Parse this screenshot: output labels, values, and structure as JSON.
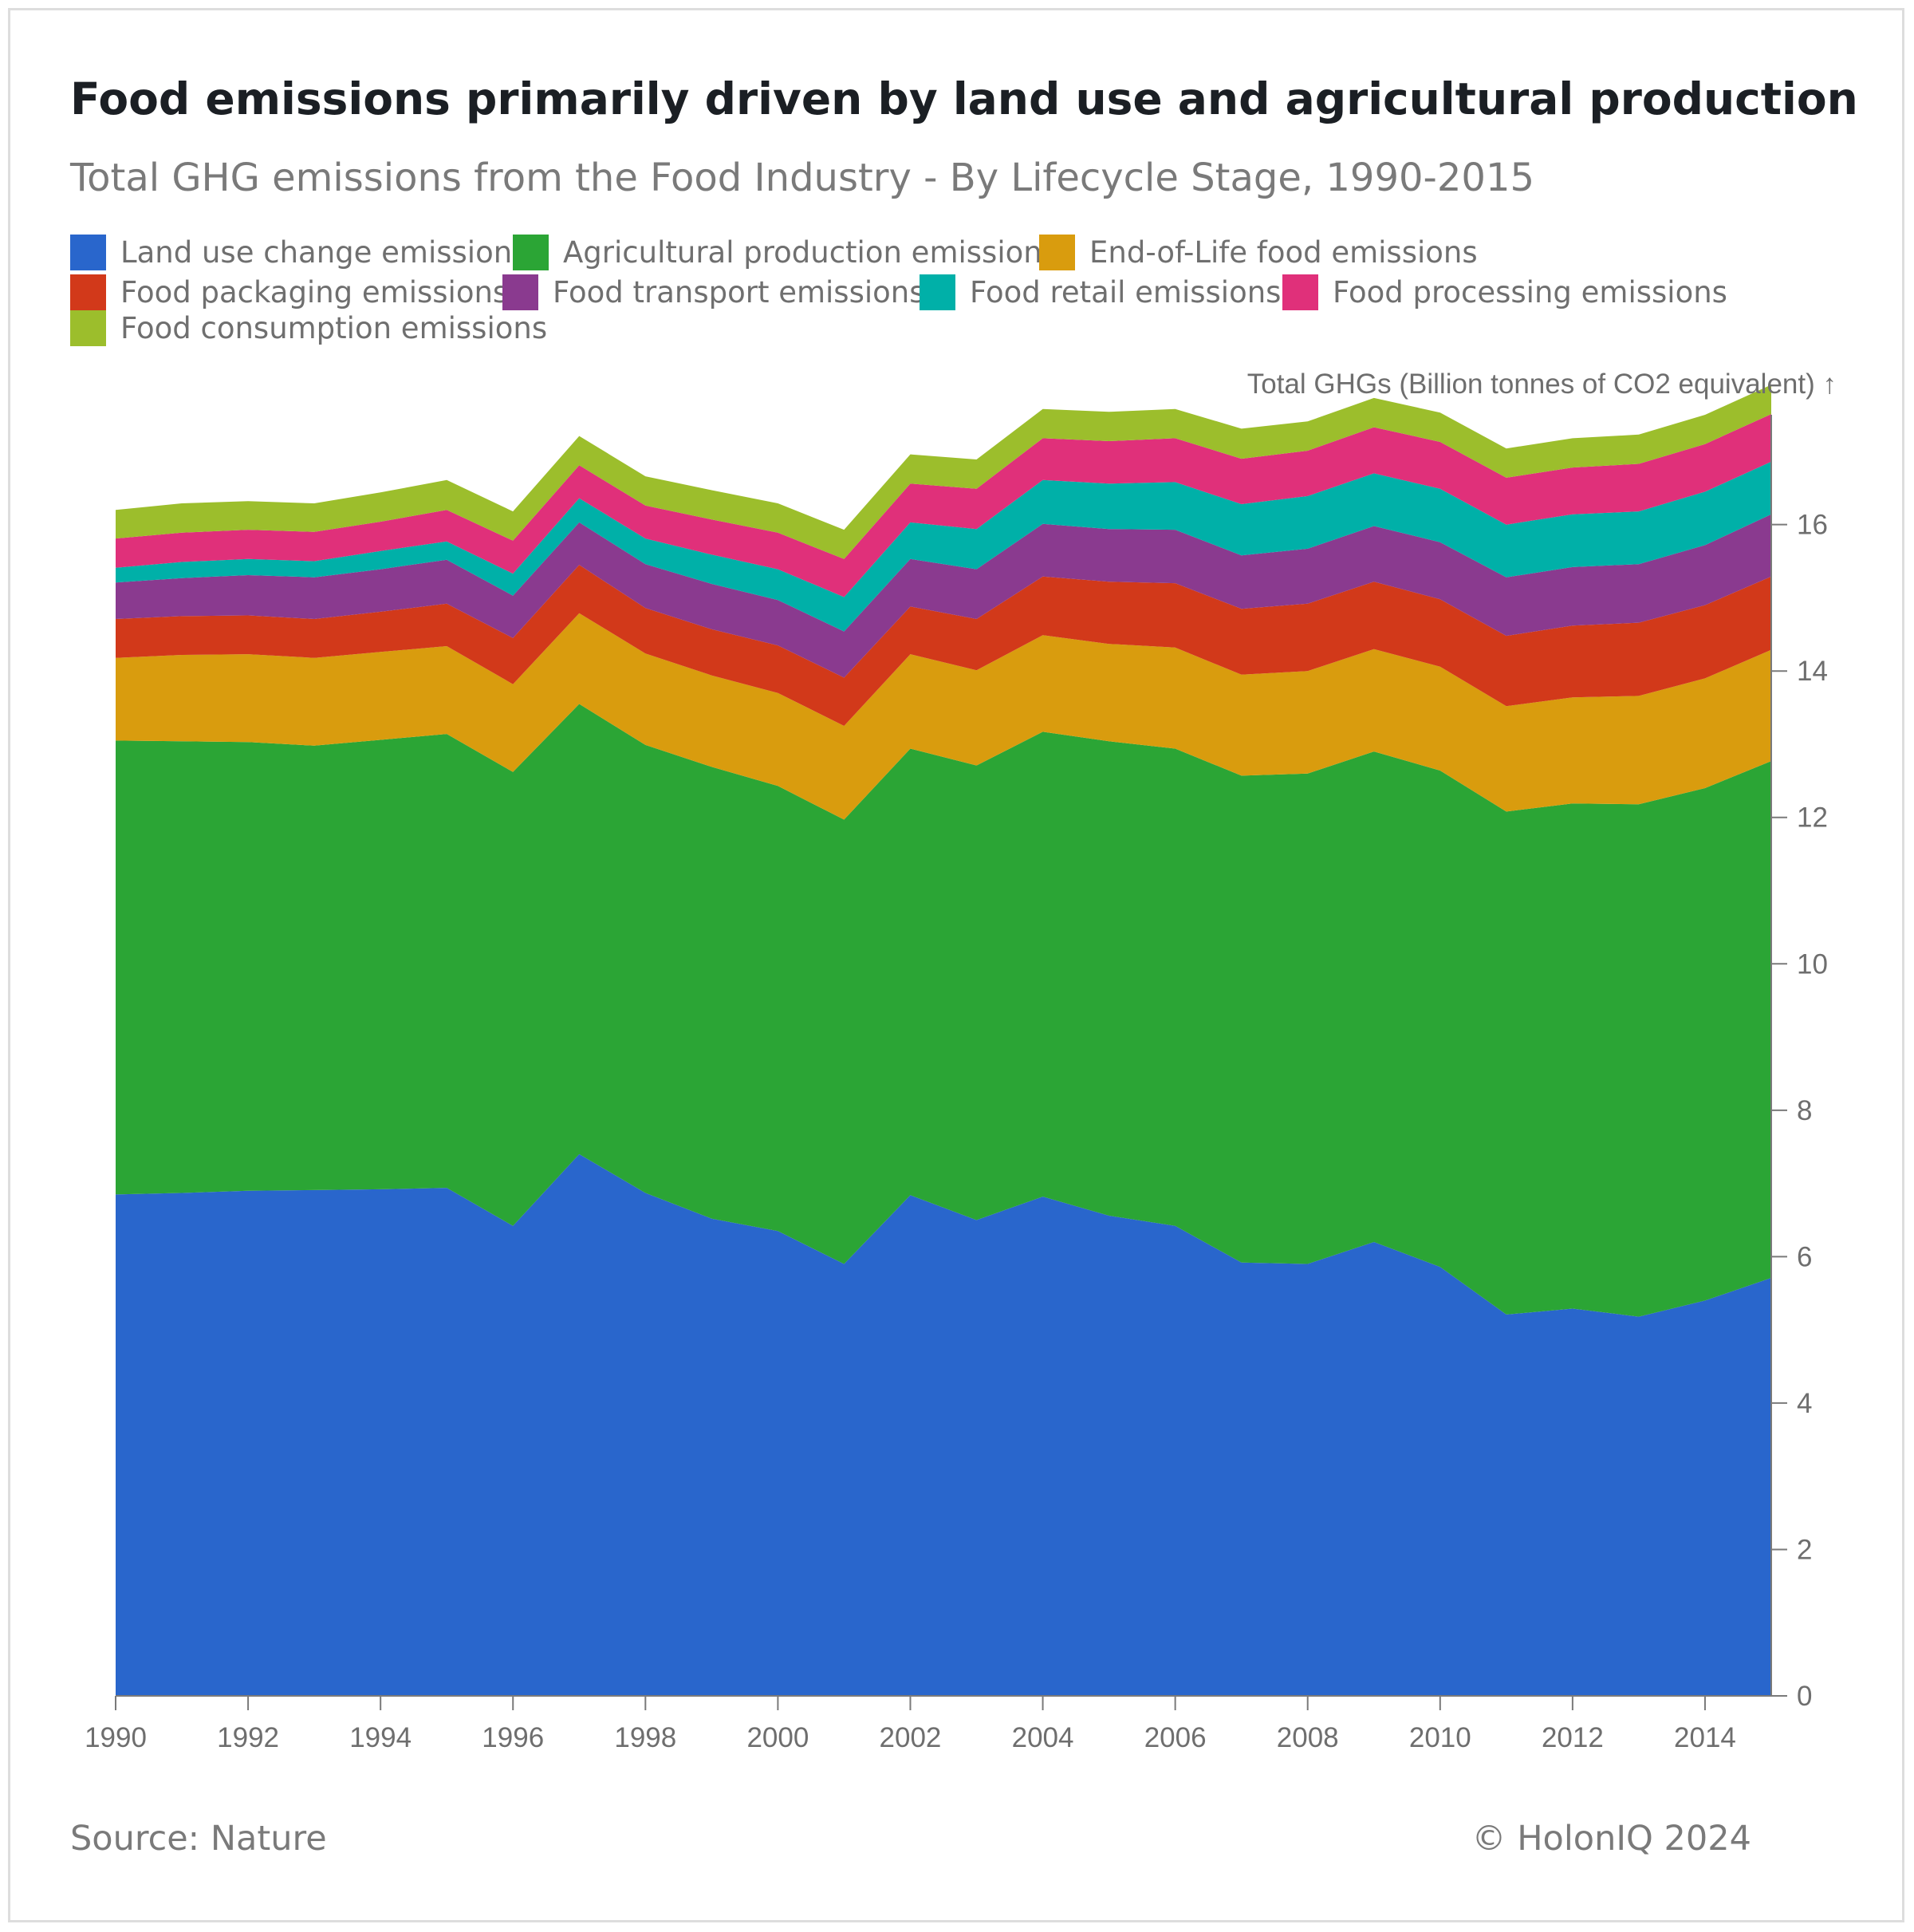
{
  "title": "Food emissions primarily driven by land use and agricultural production",
  "subtitle": "Total GHG emissions from the Food Industry - By Lifecycle Stage, 1990-2015",
  "source": "Source: Nature",
  "copyright": "© HolonIQ 2024",
  "chart_data": {
    "type": "area",
    "stacked": true,
    "ylabel": "Total GHGs (Billion tonnes of CO2 equivalent) ↑",
    "xlabel": "",
    "ylim": [
      0,
      17.5
    ],
    "xlim": [
      1990,
      2015
    ],
    "x_ticks": [
      "1990",
      "1992",
      "1994",
      "1996",
      "1998",
      "2000",
      "2002",
      "2004",
      "2006",
      "2008",
      "2010",
      "2012",
      "2014"
    ],
    "y_ticks": [
      "0",
      "2",
      "4",
      "6",
      "8",
      "10",
      "12",
      "14",
      "16"
    ],
    "legend_position": "top-left",
    "grid": false,
    "x": [
      1990,
      1991,
      1992,
      1993,
      1994,
      1995,
      1996,
      1997,
      1998,
      1999,
      2000,
      2001,
      2002,
      2003,
      2004,
      2005,
      2006,
      2007,
      2008,
      2009,
      2010,
      2011,
      2012,
      2013,
      2014,
      2015
    ],
    "series": [
      {
        "name": "Land use change emissions",
        "color": "#2966cc",
        "values": [
          6.85,
          6.87,
          6.9,
          6.91,
          6.92,
          6.94,
          6.42,
          7.4,
          6.87,
          6.52,
          6.35,
          5.9,
          6.84,
          6.5,
          6.82,
          6.56,
          6.42,
          5.92,
          5.9,
          6.2,
          5.86,
          5.21,
          5.29,
          5.18,
          5.4,
          5.71
        ]
      },
      {
        "name": "Agricultural production emissions",
        "color": "#2ba535",
        "values": [
          6.2,
          6.17,
          6.13,
          6.07,
          6.14,
          6.2,
          6.2,
          6.15,
          6.12,
          6.17,
          6.08,
          6.07,
          6.1,
          6.21,
          6.35,
          6.48,
          6.52,
          6.65,
          6.7,
          6.7,
          6.78,
          6.87,
          6.9,
          7.0,
          7.0,
          7.06
        ]
      },
      {
        "name": "End-of-Life food emissions",
        "color": "#d99c0e",
        "values": [
          1.13,
          1.18,
          1.2,
          1.2,
          1.2,
          1.2,
          1.2,
          1.24,
          1.25,
          1.25,
          1.27,
          1.28,
          1.29,
          1.3,
          1.32,
          1.33,
          1.38,
          1.38,
          1.4,
          1.4,
          1.42,
          1.44,
          1.45,
          1.48,
          1.5,
          1.52
        ]
      },
      {
        "name": "Food packaging emissions",
        "color": "#d2391a",
        "values": [
          0.53,
          0.53,
          0.53,
          0.53,
          0.55,
          0.58,
          0.63,
          0.66,
          0.62,
          0.63,
          0.65,
          0.66,
          0.65,
          0.7,
          0.8,
          0.85,
          0.88,
          0.9,
          0.92,
          0.92,
          0.92,
          0.96,
          0.98,
          1.0,
          1.0,
          1.0
        ]
      },
      {
        "name": "Food transport emissions",
        "color": "#8a3a8f",
        "values": [
          0.5,
          0.52,
          0.55,
          0.57,
          0.58,
          0.6,
          0.58,
          0.58,
          0.6,
          0.62,
          0.62,
          0.63,
          0.65,
          0.68,
          0.72,
          0.72,
          0.73,
          0.73,
          0.75,
          0.76,
          0.78,
          0.8,
          0.8,
          0.8,
          0.82,
          0.85
        ]
      },
      {
        "name": "Food retail emissions",
        "color": "#00b0a8",
        "values": [
          0.2,
          0.22,
          0.22,
          0.22,
          0.25,
          0.25,
          0.3,
          0.33,
          0.35,
          0.4,
          0.42,
          0.47,
          0.5,
          0.55,
          0.6,
          0.62,
          0.65,
          0.7,
          0.72,
          0.72,
          0.73,
          0.72,
          0.72,
          0.72,
          0.73,
          0.72
        ]
      },
      {
        "name": "Food processing emissions",
        "color": "#e0307a",
        "values": [
          0.4,
          0.4,
          0.4,
          0.4,
          0.4,
          0.43,
          0.45,
          0.45,
          0.45,
          0.48,
          0.5,
          0.52,
          0.53,
          0.55,
          0.57,
          0.58,
          0.6,
          0.62,
          0.62,
          0.63,
          0.64,
          0.64,
          0.64,
          0.65,
          0.65,
          0.65
        ]
      },
      {
        "name": "Food consumption emissions",
        "color": "#9cbe2c",
        "values": [
          0.39,
          0.4,
          0.39,
          0.39,
          0.4,
          0.41,
          0.4,
          0.4,
          0.4,
          0.4,
          0.4,
          0.4,
          0.4,
          0.4,
          0.4,
          0.4,
          0.4,
          0.41,
          0.4,
          0.4,
          0.4,
          0.4,
          0.4,
          0.4,
          0.4,
          0.4
        ]
      }
    ]
  }
}
